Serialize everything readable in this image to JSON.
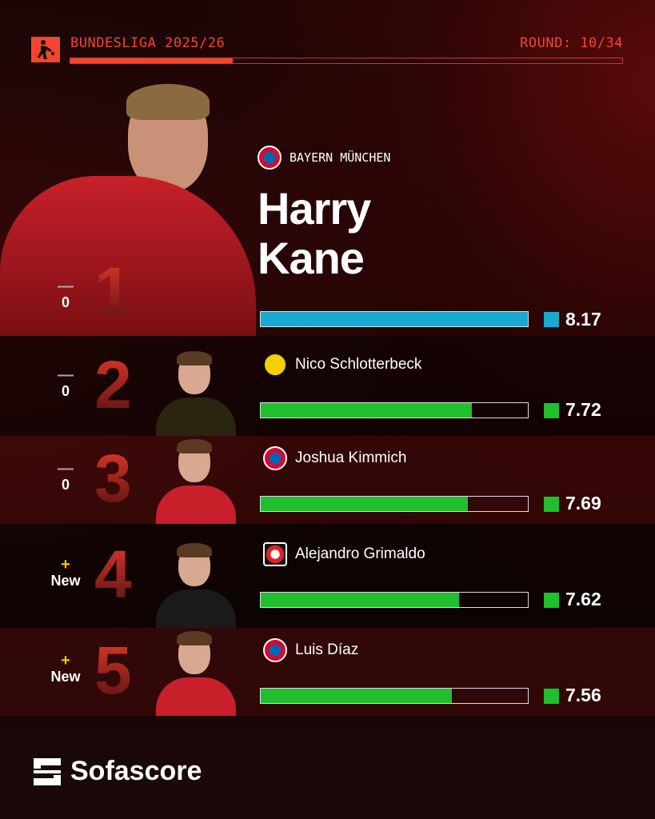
{
  "header": {
    "league": "BUNDESLIGA 2025/26",
    "round": "ROUND: 10/34",
    "round_progress": 0.294,
    "accent": "#f2452f"
  },
  "featured": {
    "team": "BAYERN MÜNCHEN",
    "first_name": "Harry",
    "last_name": "Kane"
  },
  "players": [
    {
      "rank": "1",
      "change_symbol": "—",
      "change": "0",
      "name": "Harry Kane",
      "team": "Bayern München",
      "rating": "8.17",
      "bar_color": "#17a9cf",
      "crest": "bayern"
    },
    {
      "rank": "2",
      "change_symbol": "—",
      "change": "0",
      "name": "Nico Schlotterbeck",
      "team": "Borussia Dortmund",
      "rating": "7.72",
      "bar_color": "#1fbf2e",
      "crest": "bvb"
    },
    {
      "rank": "3",
      "change_symbol": "—",
      "change": "0",
      "name": "Joshua Kimmich",
      "team": "Bayern München",
      "rating": "7.69",
      "bar_color": "#1fbf2e",
      "crest": "bayern"
    },
    {
      "rank": "4",
      "change_symbol": "+",
      "change": "New",
      "name": "Alejandro Grimaldo",
      "team": "Bayer Leverkusen",
      "rating": "7.62",
      "bar_color": "#1fbf2e",
      "crest": "leverkusen"
    },
    {
      "rank": "5",
      "change_symbol": "+",
      "change": "New",
      "name": "Luis Díaz",
      "team": "Bayern München",
      "rating": "7.56",
      "bar_color": "#1fbf2e",
      "crest": "bayern"
    }
  ],
  "footer": {
    "brand": "Sofascore"
  }
}
